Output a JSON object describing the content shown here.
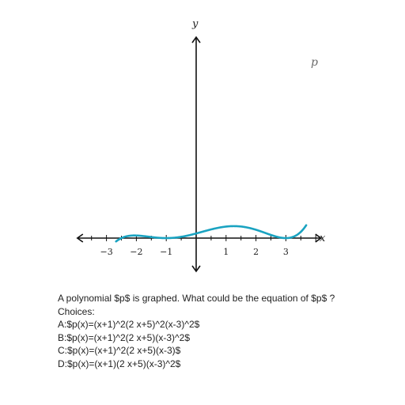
{
  "chart_data": {
    "type": "line",
    "series": [
      {
        "name": "p",
        "color": "#1aa3c1",
        "function": "p(x) = (x+1)^2 (2x+5) (x-3)^2 / 30",
        "x_range": [
          -2.68,
          3.68
        ]
      }
    ],
    "xlabel": "x",
    "ylabel": "y",
    "x_ticks": [
      -3,
      -2,
      -1,
      1,
      2,
      3
    ],
    "x_tick_labels": [
      "−3",
      "−2",
      "−1",
      "1",
      "2",
      "3"
    ],
    "xlim": [
      -4,
      4.2
    ],
    "grid": false
  },
  "question": {
    "prompt": "A polynomial $p$ is graphed. What could be the equation of $p$ ?",
    "choices_header": "Choices:",
    "choices": [
      "A:$p(x)=(x+1)^2(2 x+5)^2(x-3)^2$",
      "B:$p(x)=(x+1)^2(2 x+5)(x-3)^2$",
      "C:$p(x)=(x+1)^2(2 x+5)(x-3)$",
      "D:$p(x)=(x+1)(2 x+5)(x-3)^2$"
    ]
  }
}
